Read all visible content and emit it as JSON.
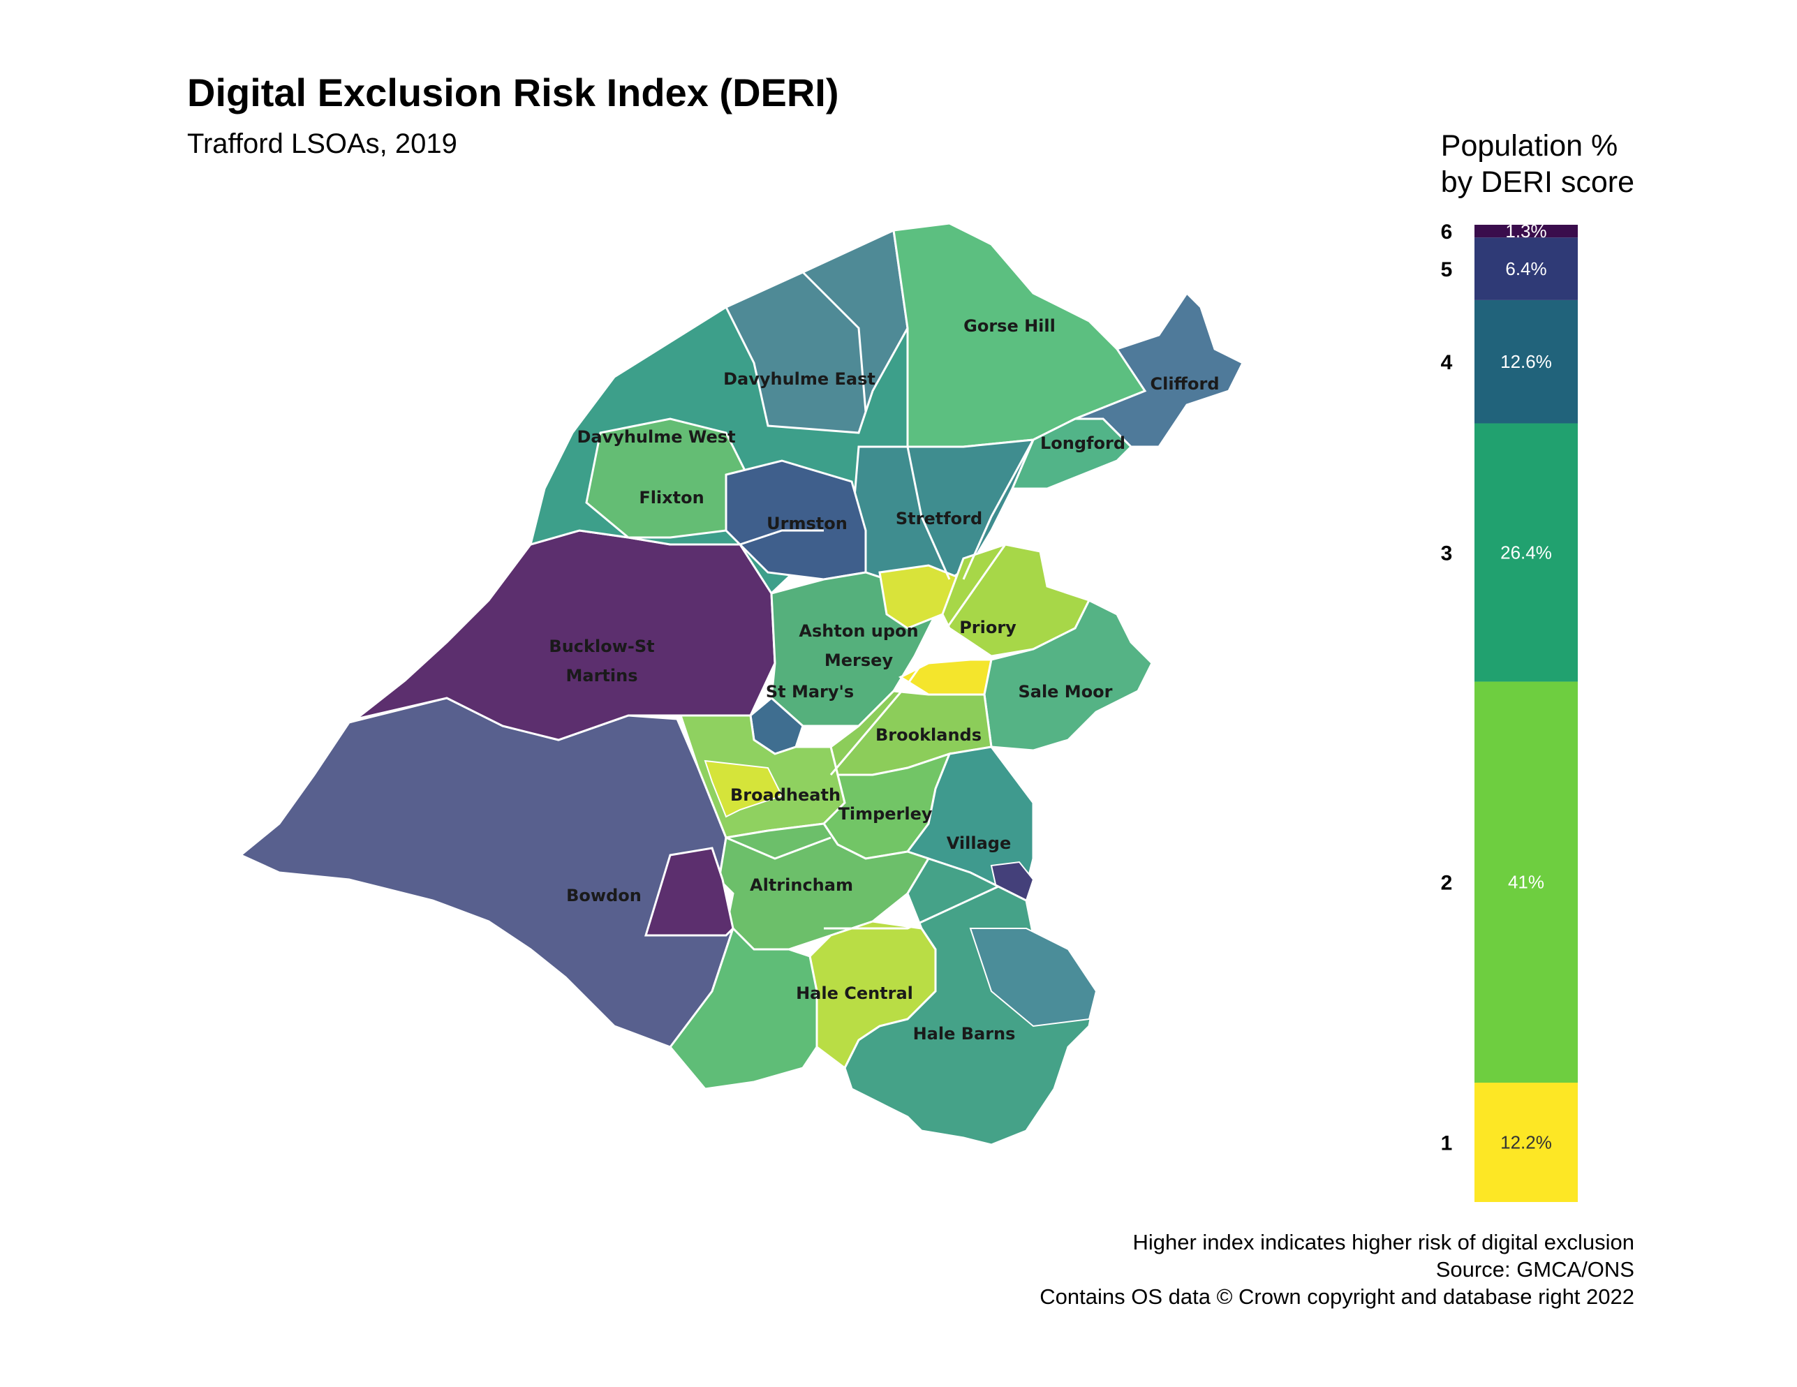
{
  "title": "Digital Exclusion Risk Index (DERI)",
  "subtitle": "Trafford LSOAs, 2019",
  "legend": {
    "title_line1": "Population %",
    "title_line2": "by DERI score",
    "segments": [
      {
        "score": "1",
        "value": 12.2,
        "label": "12.2%",
        "color": "#fde725"
      },
      {
        "score": "2",
        "value": 41.0,
        "label": "41%",
        "color": "#6ece40"
      },
      {
        "score": "3",
        "value": 26.4,
        "label": "26.4%",
        "color": "#21a16f"
      },
      {
        "score": "4",
        "value": 12.6,
        "label": "12.6%",
        "color": "#21637b"
      },
      {
        "score": "5",
        "value": 6.4,
        "label": "6.4%",
        "color": "#2f3a76"
      },
      {
        "score": "6",
        "value": 1.3,
        "label": "1.3%",
        "color": "#3a0d4c"
      }
    ]
  },
  "map": {
    "wards": [
      {
        "id": "gorse-hill",
        "name": "Gorse Hill"
      },
      {
        "id": "clifford",
        "name": "Clifford"
      },
      {
        "id": "davyhulme-east",
        "name": "Davyhulme East"
      },
      {
        "id": "longford",
        "name": "Longford"
      },
      {
        "id": "davyhulme-west",
        "name": "Davyhulme West"
      },
      {
        "id": "flixton",
        "name": "Flixton"
      },
      {
        "id": "stretford",
        "name": "Stretford"
      },
      {
        "id": "urmston",
        "name": "Urmston"
      },
      {
        "id": "bucklow-st-martins-1",
        "name": "Bucklow-St"
      },
      {
        "id": "bucklow-st-martins-2",
        "name": "Martins"
      },
      {
        "id": "priory",
        "name": "Priory"
      },
      {
        "id": "ashton-upon-mersey-1",
        "name": "Ashton upon"
      },
      {
        "id": "ashton-upon-mersey-2",
        "name": "Mersey"
      },
      {
        "id": "sale-moor",
        "name": "Sale Moor"
      },
      {
        "id": "st-marys",
        "name": "St Mary's"
      },
      {
        "id": "brooklands",
        "name": "Brooklands"
      },
      {
        "id": "broadheath",
        "name": "Broadheath"
      },
      {
        "id": "timperley",
        "name": "Timperley"
      },
      {
        "id": "village",
        "name": "Village"
      },
      {
        "id": "altrincham",
        "name": "Altrincham"
      },
      {
        "id": "bowdon",
        "name": "Bowdon"
      },
      {
        "id": "hale-central",
        "name": "Hale Central"
      },
      {
        "id": "hale-barns",
        "name": "Hale Barns"
      }
    ]
  },
  "caption": {
    "line1": "Higher index indicates higher risk of digital exclusion",
    "line2": "Source: GMCA/ONS",
    "line3": "Contains OS data © Crown copyright and database right 2022"
  }
}
